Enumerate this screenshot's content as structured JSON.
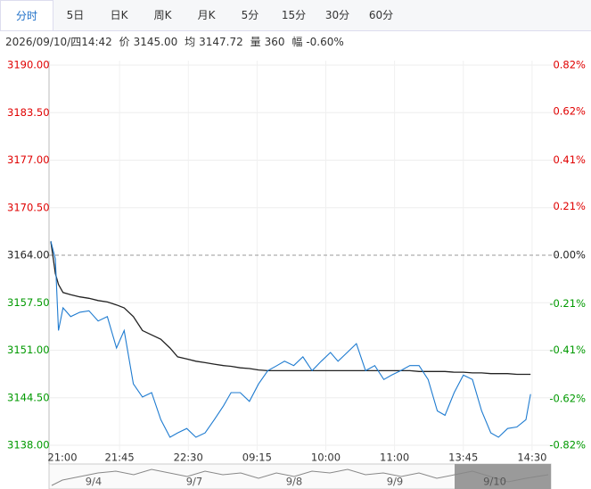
{
  "tabs": [
    "分时",
    "5日",
    "日K",
    "周K",
    "月K",
    "5分",
    "15分",
    "30分",
    "60分"
  ],
  "info": {
    "datetime": "2026/09/10/四14:42",
    "price_label": "价",
    "price": "3145.00",
    "avg_label": "均",
    "avg": "3147.72",
    "volume_label": "量",
    "volume": "360",
    "change_label": "幅",
    "change": "-0.60%"
  },
  "chart_data": {
    "type": "line",
    "x": [
      0,
      3,
      5,
      8,
      13,
      19,
      25,
      31,
      37,
      43,
      48,
      54,
      60,
      66,
      72,
      78,
      83,
      89,
      95,
      101,
      107,
      113,
      118,
      124,
      130,
      136,
      142,
      148,
      153,
      159,
      165,
      171,
      177,
      183,
      188,
      194,
      200,
      206,
      212,
      218,
      223,
      229,
      235,
      241,
      247,
      253,
      258,
      264,
      270,
      276,
      282,
      288,
      293,
      299,
      305,
      311,
      314
    ],
    "series": [
      {
        "color": "#1e7bd0",
        "values": [
          3165.9,
          3163.5,
          3153.7,
          3156.8,
          3155.6,
          3156.2,
          3156.4,
          3155.0,
          3155.6,
          3151.3,
          3153.7,
          3146.4,
          3144.6,
          3145.2,
          3141.5,
          3139.1,
          3139.7,
          3140.3,
          3139.1,
          3139.7,
          3141.5,
          3143.4,
          3145.2,
          3145.2,
          3144.0,
          3146.4,
          3148.2,
          3148.9,
          3149.5,
          3148.9,
          3150.1,
          3148.2,
          3149.5,
          3150.7,
          3149.5,
          3150.7,
          3151.9,
          3148.2,
          3148.9,
          3147.0,
          3147.6,
          3148.2,
          3148.9,
          3148.9,
          3147.0,
          3142.7,
          3142.1,
          3145.2,
          3147.6,
          3147.0,
          3142.7,
          3139.7,
          3139.1,
          3140.3,
          3140.5,
          3141.5,
          3145.0
        ]
      },
      {
        "color": "#222222",
        "values": [
          3165.9,
          3161.5,
          3160.0,
          3158.9,
          3158.6,
          3158.3,
          3158.1,
          3157.8,
          3157.6,
          3157.2,
          3156.8,
          3155.6,
          3153.7,
          3153.1,
          3152.5,
          3151.3,
          3150.1,
          3149.8,
          3149.5,
          3149.3,
          3149.1,
          3148.9,
          3148.8,
          3148.6,
          3148.5,
          3148.3,
          3148.2,
          3148.2,
          3148.2,
          3148.2,
          3148.2,
          3148.2,
          3148.2,
          3148.2,
          3148.2,
          3148.2,
          3148.2,
          3148.2,
          3148.2,
          3148.2,
          3148.2,
          3148.2,
          3148.2,
          3148.1,
          3148.1,
          3148.1,
          3148.1,
          3148.0,
          3148.0,
          3147.9,
          3147.9,
          3147.8,
          3147.8,
          3147.8,
          3147.7,
          3147.7,
          3147.7
        ]
      }
    ],
    "xlim": [
      0,
      330
    ],
    "xticks": [
      {
        "value": 0,
        "label": "21:00"
      },
      {
        "value": 45,
        "label": "21:45"
      },
      {
        "value": 90,
        "label": "22:30"
      },
      {
        "value": 135,
        "label": "09:15"
      },
      {
        "value": 180,
        "label": "10:00"
      },
      {
        "value": 225,
        "label": "11:00"
      },
      {
        "value": 270,
        "label": "13:45"
      },
      {
        "value": 315,
        "label": "14:30"
      }
    ],
    "ylim": [
      3138,
      3190
    ],
    "yticks": [
      {
        "value": 3138,
        "label": "3138.00"
      },
      {
        "value": 3144.5,
        "label": "3144.50"
      },
      {
        "value": 3151,
        "label": "3151.00"
      },
      {
        "value": 3157.5,
        "label": "3157.50"
      },
      {
        "value": 3164,
        "label": "3164.00"
      },
      {
        "value": 3170.5,
        "label": "3170.50"
      },
      {
        "value": 3177,
        "label": "3177.00"
      },
      {
        "value": 3183.5,
        "label": "3183.50"
      },
      {
        "value": 3190,
        "label": "3190.00"
      }
    ],
    "y2lim": [
      -0.82,
      0.82
    ],
    "y2ticks": [
      {
        "value": -0.82,
        "label": "-0.82%"
      },
      {
        "value": -0.62,
        "label": "-0.62%"
      },
      {
        "value": -0.41,
        "label": "-0.41%"
      },
      {
        "value": -0.21,
        "label": "-0.21%"
      },
      {
        "value": 0,
        "label": "0.00%"
      },
      {
        "value": 0.21,
        "label": "0.21%"
      },
      {
        "value": 0.41,
        "label": "0.41%"
      },
      {
        "value": 0.62,
        "label": "0.62%"
      },
      {
        "value": 0.82,
        "label": "0.82%"
      }
    ],
    "base_value": 3164,
    "up_color": "#e00000",
    "down_color": "#009900",
    "grid": true,
    "navigator_labels": [
      "9/4",
      "9/7",
      "9/8",
      "9/9",
      "9/10"
    ]
  }
}
